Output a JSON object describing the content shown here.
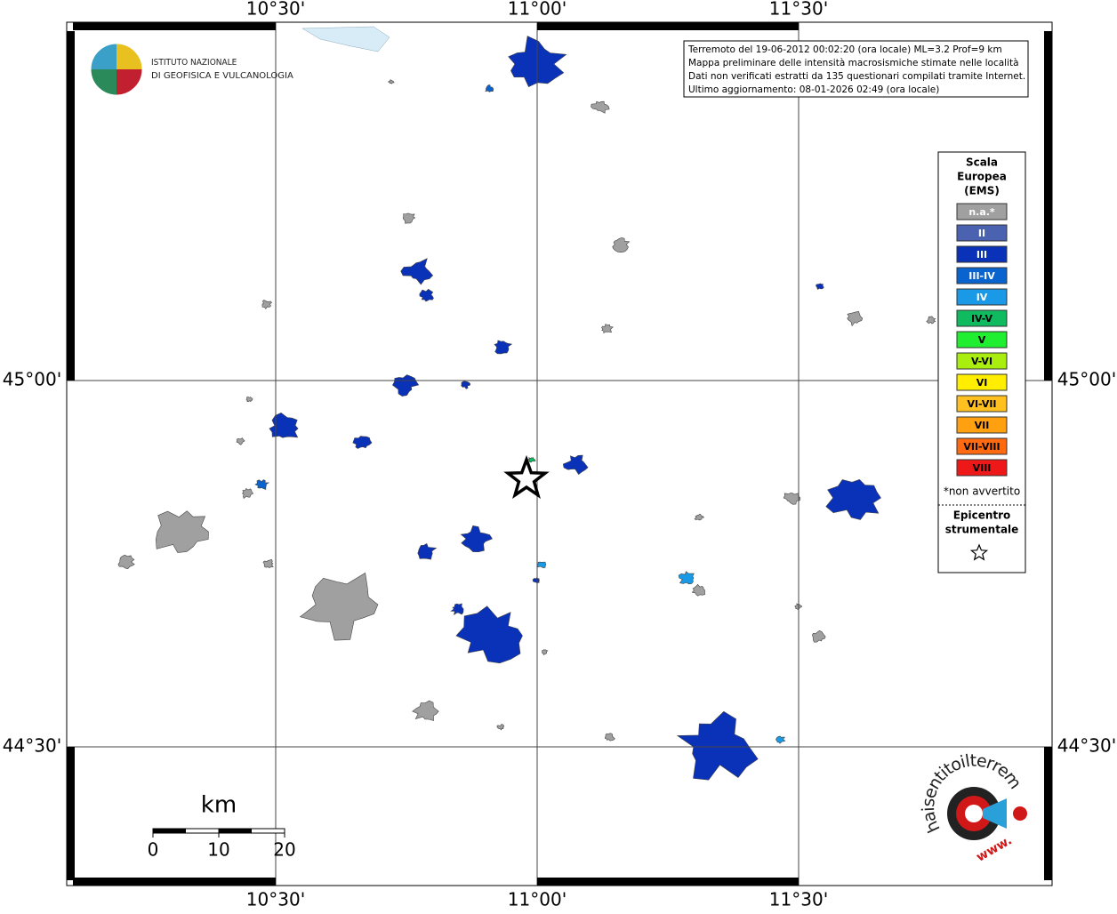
{
  "map": {
    "longitude_labels": [
      "10°30'",
      "11°00'",
      "11°30'"
    ],
    "latitude_labels": [
      "45°00'",
      "44°30'"
    ]
  },
  "logo": {
    "lines": [
      "ISTITUTO NAZIONALE",
      "DI GEOFISICA E VULCANOLOGIA"
    ]
  },
  "info_box": {
    "lines": [
      "Terremoto del 19-06-2012 00:02:20 (ora locale) ML=3.2 Prof=9 km",
      "Mappa preliminare delle intensità macrosismiche stimate nelle località",
      "Dati non verificati estratti da 135 questionari compilati tramite Internet.",
      "Ultimo aggiornamento: 08-01-2026 02:49 (ora locale)"
    ]
  },
  "legend": {
    "title": [
      "Scala",
      "Europea",
      "(EMS)"
    ],
    "items": [
      {
        "label": "n.a.*",
        "color": "#a0a0a0"
      },
      {
        "label": "II",
        "color": "#4a62b0"
      },
      {
        "label": "III",
        "color": "#0a32b8"
      },
      {
        "label": "III-IV",
        "color": "#0a64d0"
      },
      {
        "label": "IV",
        "color": "#1a9ae6"
      },
      {
        "label": "IV-V",
        "color": "#10bb60"
      },
      {
        "label": "V",
        "color": "#20ee30"
      },
      {
        "label": "V-VI",
        "color": "#aaee10"
      },
      {
        "label": "VI",
        "color": "#ffee00"
      },
      {
        "label": "VI-VII",
        "color": "#ffc020"
      },
      {
        "label": "VII",
        "color": "#ffa010"
      },
      {
        "label": "VII-VIII",
        "color": "#ff6a10"
      },
      {
        "label": "VIII",
        "color": "#ee1818"
      }
    ],
    "note": "*non avvertito",
    "epicenter_title": [
      "Epicentro",
      "strumentale"
    ]
  },
  "scale_bar": {
    "unit": "km",
    "labels": [
      "0",
      "10",
      "20"
    ]
  },
  "footer_logo": {
    "text": "haisentitoilterremoto.it",
    "www": "www."
  }
}
